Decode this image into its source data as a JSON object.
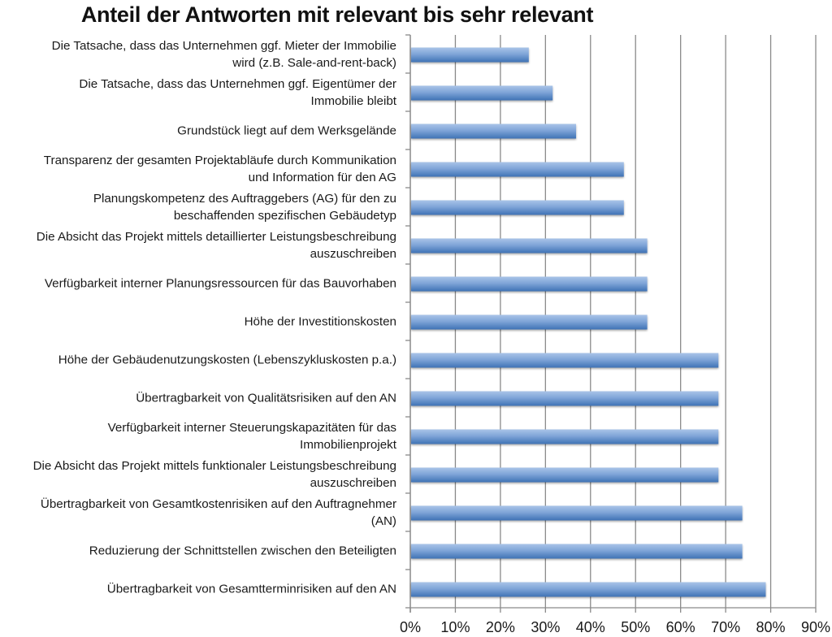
{
  "chart_data": {
    "type": "bar",
    "orientation": "horizontal",
    "title": "Anteil der Antworten mit relevant bis sehr relevant",
    "xlabel": "",
    "ylabel": "",
    "xlim": [
      0,
      90
    ],
    "x_unit": "%",
    "x_ticks": [
      "0%",
      "10%",
      "20%",
      "30%",
      "40%",
      "50%",
      "60%",
      "70%",
      "80%",
      "90%"
    ],
    "grid": "vertical major gridlines",
    "legend": "none",
    "bar_color": "#4f81bd",
    "categories": [
      [
        "Die Tatsache, dass das Unternehmen ggf. Mieter der Immobilie",
        "wird (z.B. Sale-and-rent-back)"
      ],
      [
        "Die Tatsache, dass das Unternehmen ggf. Eigentümer der",
        "Immobilie bleibt"
      ],
      [
        "Grundstück liegt auf dem Werksgelände"
      ],
      [
        "Transparenz der gesamten Projektabläufe durch Kommunikation",
        "und Information für den AG"
      ],
      [
        "Planungskompetenz des Auftraggebers (AG) für den zu",
        "beschaffenden spezifischen Gebäudetyp"
      ],
      [
        "Die Absicht das Projekt mittels detaillierter Leistungsbeschreibung",
        "auszuschreiben"
      ],
      [
        "Verfügbarkeit interner Planungsressourcen für das Bauvorhaben"
      ],
      [
        "Höhe der Investitionskosten"
      ],
      [
        "Höhe der Gebäudenutzungskosten (Lebenszykluskosten p.a.)"
      ],
      [
        "Übertragbarkeit von Qualitätsrisiken auf den AN"
      ],
      [
        "Verfügbarkeit interner Steuerungskapazitäten für das",
        "Immobilienprojekt"
      ],
      [
        "Die Absicht das Projekt mittels funktionaler Leistungsbeschreibung",
        "auszuschreiben"
      ],
      [
        "Übertragbarkeit von Gesamtkostenrisiken auf den Auftragnehmer",
        "(AN)"
      ],
      [
        "Reduzierung der Schnittstellen zwischen den Beteiligten"
      ],
      [
        "Übertragbarkeit von Gesamtterminrisiken auf den AN"
      ]
    ],
    "values": [
      26.3,
      31.6,
      36.8,
      47.4,
      47.4,
      52.6,
      52.6,
      52.6,
      68.4,
      68.4,
      68.4,
      68.4,
      73.7,
      73.7,
      78.9
    ]
  }
}
